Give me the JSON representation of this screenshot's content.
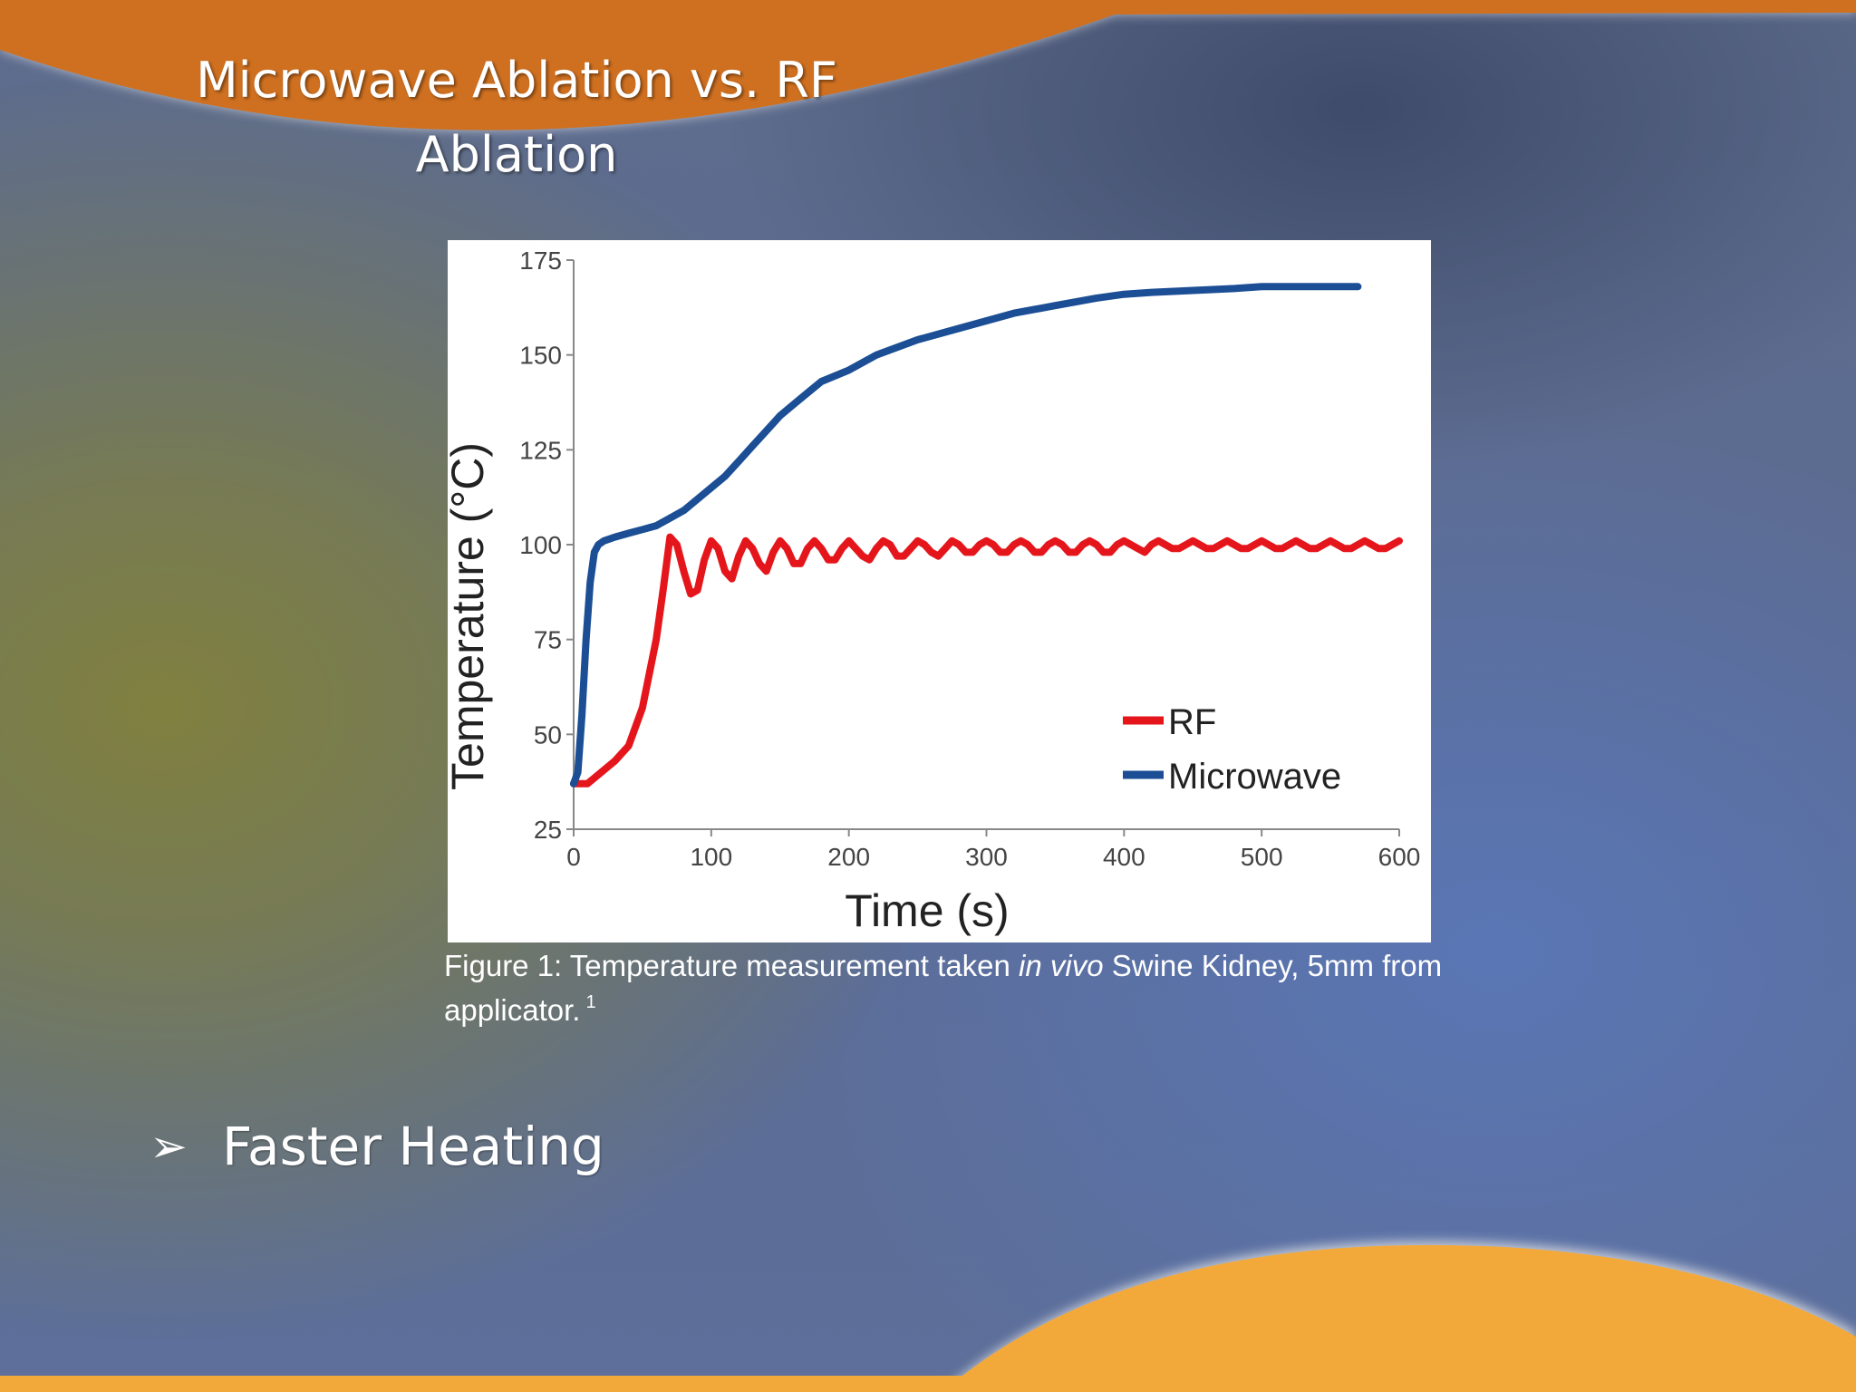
{
  "slide": {
    "title": "Microwave Ablation vs. RF Ablation",
    "caption_part1": "Figure 1: Temperature measurement taken ",
    "caption_italic": "in vivo",
    "caption_part2": " Swine Kidney, 5mm from applicator.",
    "caption_ref": "1",
    "bullet_icon": "arrow-bullet-icon",
    "bullet_text": "Faster Heating"
  },
  "colors": {
    "orange_top": "#cf7020",
    "orange_bottom": "#f3a93a",
    "rf": "#e5161b",
    "microwave": "#1b4e94"
  },
  "chart_data": {
    "type": "line",
    "xlabel": "Time (s)",
    "ylabel": "Temperature (°C)",
    "xlim": [
      0,
      600
    ],
    "ylim": [
      25,
      175
    ],
    "xticks": [
      0,
      100,
      200,
      300,
      400,
      500,
      600
    ],
    "yticks": [
      25,
      50,
      75,
      100,
      125,
      150,
      175
    ],
    "grid": false,
    "legend_position": "bottom-right",
    "series": [
      {
        "name": "RF",
        "color": "#e5161b",
        "x": [
          0,
          10,
          20,
          30,
          40,
          50,
          60,
          65,
          70,
          75,
          80,
          85,
          90,
          95,
          100,
          105,
          110,
          115,
          120,
          125,
          130,
          135,
          140,
          145,
          150,
          155,
          160,
          165,
          170,
          175,
          180,
          185,
          190,
          195,
          200,
          205,
          210,
          215,
          220,
          225,
          230,
          235,
          240,
          245,
          250,
          255,
          260,
          265,
          270,
          275,
          280,
          285,
          290,
          295,
          300,
          305,
          310,
          315,
          320,
          325,
          330,
          335,
          340,
          345,
          350,
          355,
          360,
          365,
          370,
          375,
          380,
          385,
          390,
          395,
          400,
          405,
          410,
          415,
          420,
          425,
          430,
          435,
          440,
          445,
          450,
          455,
          460,
          465,
          470,
          475,
          480,
          485,
          490,
          495,
          500,
          505,
          510,
          515,
          520,
          525,
          530,
          535,
          540,
          545,
          550,
          555,
          560,
          565,
          570,
          575,
          580,
          585,
          590,
          600
        ],
        "values": [
          37,
          37,
          40,
          43,
          47,
          57,
          75,
          88,
          102,
          100,
          93,
          87,
          88,
          96,
          101,
          99,
          93,
          91,
          97,
          101,
          99,
          95,
          93,
          98,
          101,
          99,
          95,
          95,
          99,
          101,
          99,
          96,
          96,
          99,
          101,
          99,
          97,
          96,
          99,
          101,
          100,
          97,
          97,
          99,
          101,
          100,
          98,
          97,
          99,
          101,
          100,
          98,
          98,
          100,
          101,
          100,
          98,
          98,
          100,
          101,
          100,
          98,
          98,
          100,
          101,
          100,
          98,
          98,
          100,
          101,
          100,
          98,
          98,
          100,
          101,
          100,
          99,
          98,
          100,
          101,
          100,
          99,
          99,
          100,
          101,
          100,
          99,
          99,
          100,
          101,
          100,
          99,
          99,
          100,
          101,
          100,
          99,
          99,
          100,
          101,
          100,
          99,
          99,
          100,
          101,
          100,
          99,
          99,
          100,
          101,
          100,
          99,
          99,
          101
        ]
      },
      {
        "name": "Microwave",
        "color": "#1b4e94",
        "x": [
          0,
          3,
          6,
          9,
          12,
          15,
          18,
          22,
          30,
          40,
          50,
          60,
          70,
          80,
          90,
          100,
          110,
          120,
          130,
          140,
          150,
          160,
          170,
          180,
          200,
          220,
          250,
          280,
          300,
          320,
          350,
          380,
          400,
          420,
          450,
          480,
          500,
          520,
          550,
          570
        ],
        "values": [
          37,
          40,
          55,
          75,
          90,
          98,
          100,
          101,
          102,
          103,
          104,
          105,
          107,
          109,
          112,
          115,
          118,
          122,
          126,
          130,
          134,
          137,
          140,
          143,
          146,
          150,
          154,
          157,
          159,
          161,
          163,
          165,
          166,
          166.5,
          167,
          167.5,
          168,
          168,
          168,
          168
        ]
      }
    ]
  }
}
